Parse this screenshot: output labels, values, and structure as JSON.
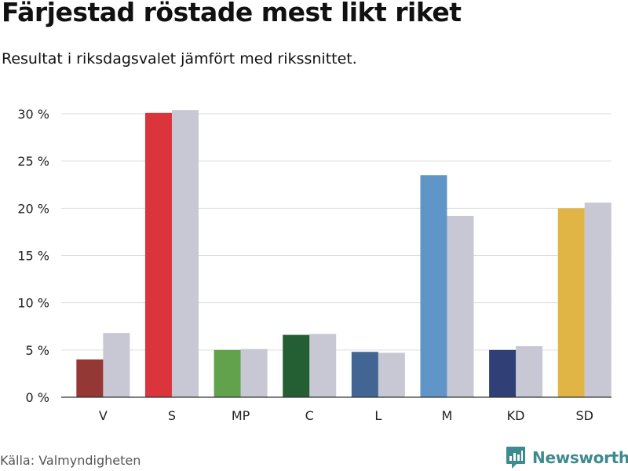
{
  "title": "Färjestad röstade mest likt riket",
  "subtitle": "Resultat i riksdagsvalet jämfört med rikssnittet.",
  "source": "Källa: Valmyndigheten",
  "logo": {
    "text": "Newsworthy",
    "color": "#3d8a8f",
    "icon": "bar-chart-badge-icon"
  },
  "chart_data": {
    "type": "bar",
    "categories": [
      "V",
      "S",
      "MP",
      "C",
      "L",
      "M",
      "KD",
      "SD"
    ],
    "series": [
      {
        "values": [
          4.0,
          30.1,
          5.0,
          6.6,
          4.8,
          23.5,
          5.0,
          20.0
        ],
        "colors": [
          "#953735",
          "#dc343b",
          "#62a24d",
          "#245f34",
          "#426593",
          "#6096c7",
          "#303f75",
          "#e0b445"
        ]
      },
      {
        "values": [
          6.8,
          30.4,
          5.1,
          6.7,
          4.7,
          19.2,
          5.4,
          20.6
        ],
        "color": "#c8c8d4"
      }
    ],
    "y_ticks": [
      "0 %",
      "5 %",
      "10 %",
      "15 %",
      "20 %",
      "25 %",
      "30 %"
    ],
    "ylim": [
      0,
      30
    ],
    "grid": true
  }
}
